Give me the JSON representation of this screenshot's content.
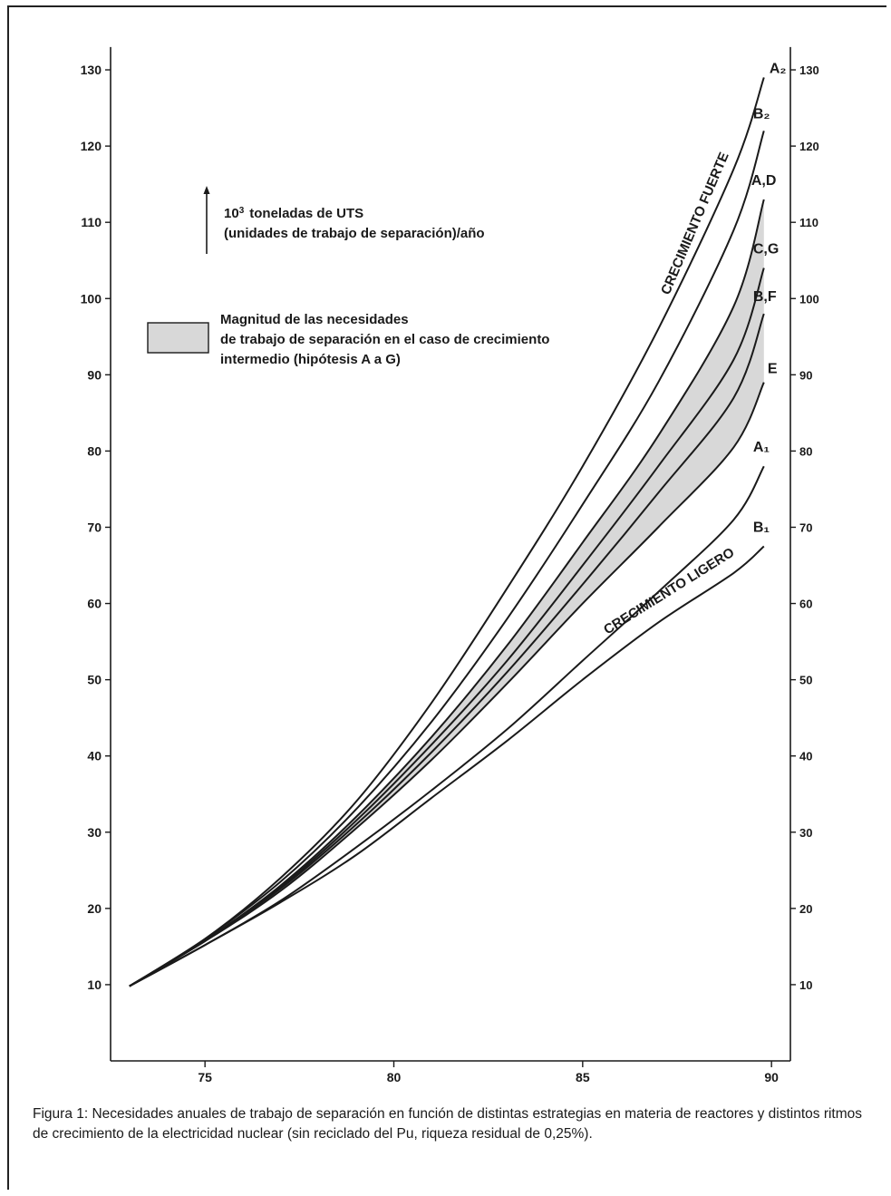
{
  "chart_data": {
    "type": "line",
    "title": "",
    "xlabel": "",
    "ylabel": "10³ toneladas de UTS (unidades de trabajo de separación)/año",
    "xlim": [
      72.5,
      90.5
    ],
    "ylim": [
      0,
      135
    ],
    "x_ticks": [
      75,
      80,
      85,
      90
    ],
    "x_tick_labels": [
      "75",
      "80",
      "85",
      "90"
    ],
    "y_ticks": [
      10,
      20,
      30,
      40,
      50,
      60,
      70,
      80,
      90,
      100,
      110,
      120,
      130
    ],
    "y_tick_labels": [
      "10",
      "20",
      "30",
      "40",
      "50",
      "60",
      "70",
      "80",
      "90",
      "100",
      "110",
      "120",
      "130"
    ],
    "x": [
      73,
      75,
      77,
      79,
      81,
      83,
      85,
      87,
      89,
      89.8
    ],
    "series": [
      {
        "name": "A₂",
        "values": [
          9.8,
          16.0,
          24.0,
          34.0,
          47.0,
          62.0,
          78.0,
          96.0,
          117.0,
          129.0
        ]
      },
      {
        "name": "B₂",
        "values": [
          9.8,
          16.0,
          23.5,
          33.0,
          44.5,
          58.0,
          73.0,
          89.0,
          109.0,
          122.0
        ]
      },
      {
        "name": "A,D",
        "values": [
          9.8,
          15.8,
          23.0,
          32.0,
          42.5,
          54.5,
          68.0,
          82.0,
          99.0,
          113.0
        ]
      },
      {
        "name": "C,G",
        "values": [
          9.8,
          15.8,
          22.8,
          31.5,
          41.5,
          52.5,
          65.0,
          78.0,
          92.0,
          104.0
        ]
      },
      {
        "name": "B,F",
        "values": [
          9.8,
          15.8,
          22.6,
          31.0,
          40.5,
          51.0,
          62.5,
          74.5,
          87.0,
          98.0
        ]
      },
      {
        "name": "E",
        "values": [
          9.8,
          15.7,
          22.3,
          30.5,
          39.5,
          49.5,
          60.0,
          70.0,
          80.5,
          89.0
        ]
      },
      {
        "name": "A₁",
        "values": [
          9.8,
          15.2,
          21.0,
          28.0,
          35.5,
          43.5,
          52.5,
          61.5,
          71.0,
          78.0
        ]
      },
      {
        "name": "B₁",
        "values": [
          9.8,
          15.2,
          20.8,
          27.0,
          34.5,
          42.0,
          50.0,
          57.5,
          64.0,
          67.5
        ]
      }
    ],
    "shaded_band": {
      "between": [
        "A,D",
        "E"
      ],
      "color": "#d8d8d8"
    },
    "annotations": [
      "CRECIMIENTO FUERTE",
      "CRECIMIENTO LIGERO"
    ],
    "grid": false
  },
  "labels": {
    "unit_line1_base": "10",
    "unit_line1_sup": "3",
    "unit_line1_rest": "toneladas de UTS",
    "unit_line2": "(unidades de trabajo de separación)/año",
    "legend_line1": "Magnitud de las necesidades",
    "legend_line2": "de trabajo de separación en el caso de crecimiento",
    "legend_line3": "intermedio (hipótesis A a G)",
    "strong_growth": "CRECIMIENTO FUERTE",
    "light_growth": "CRECIMIENTO LIGERO"
  },
  "caption": "Figura 1: Necesidades anuales de trabajo de separación en función de distintas estrategias en materia de reactores y distintos ritmos de crecimiento de la electricidad nuclear (sin reciclado del Pu, riqueza residual de 0,25%).",
  "colors": {
    "line": "#1a1a1a",
    "band": "#d8d8d8",
    "background": "#ffffff"
  }
}
